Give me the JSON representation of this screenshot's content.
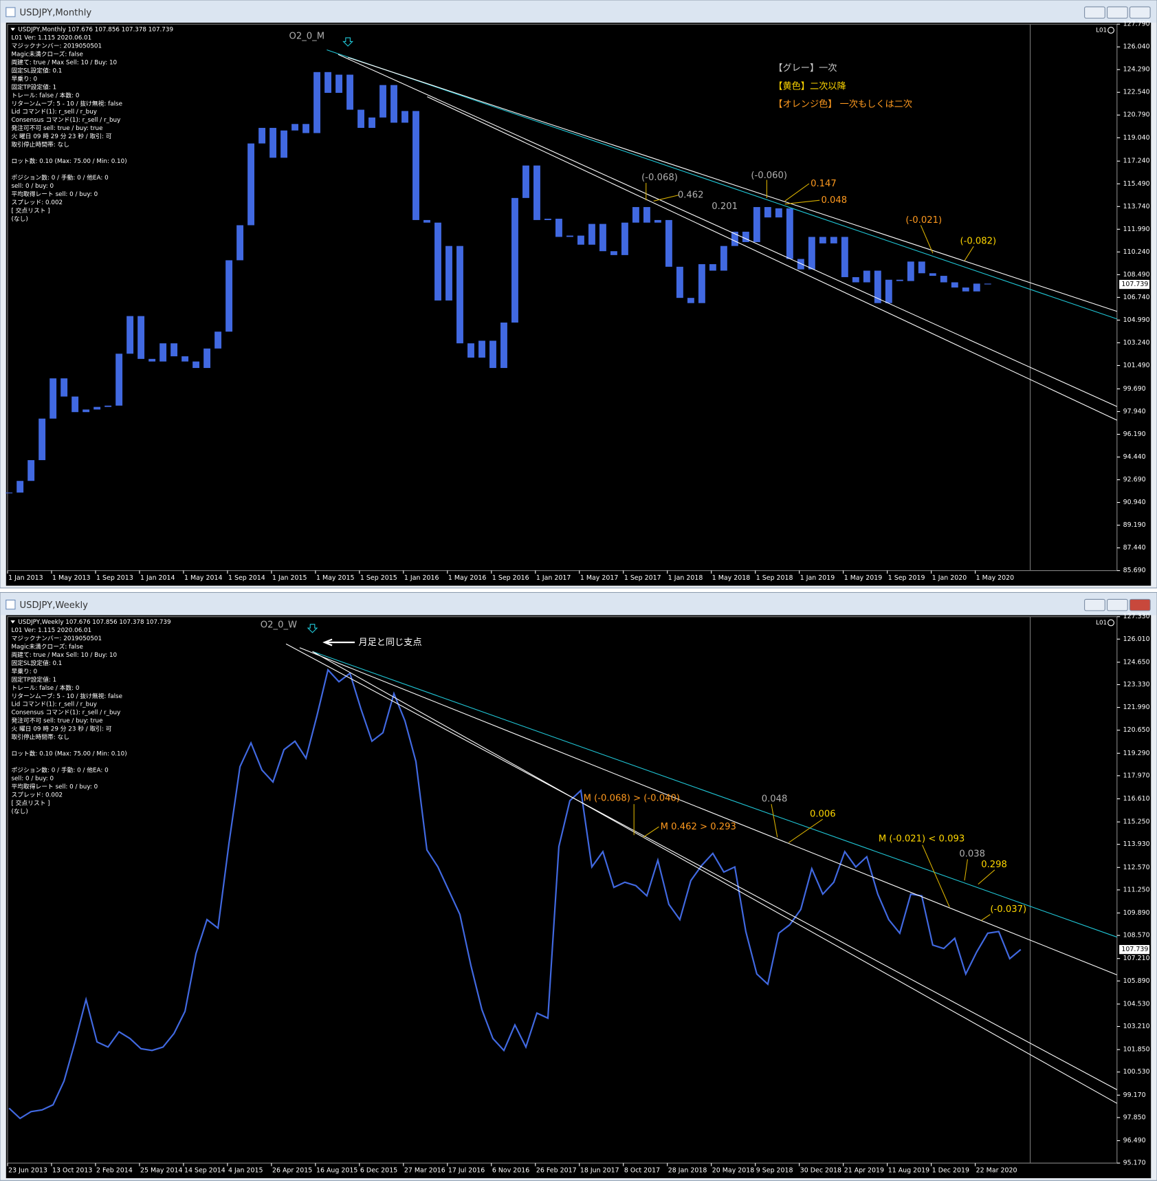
{
  "chart_data": [
    {
      "type": "candlestick",
      "title": "USDJPY,Monthly",
      "header": "USDJPY,Monthly  107.676 107.856 107.378 107.739",
      "indicator_label": "L01",
      "color": "#4169e1",
      "info_lines": [
        "L01 Ver: 1.115 2020.06.01",
        "マジックナンバー: 2019050501",
        "Magic未満クローズ: false",
        "両建て: true / Max Sell: 10 / Buy: 10",
        "固定SL設定値: 0.1",
        "早乗り: 0",
        "固定TP設定値: 1",
        "トレール: false / 本数: 0",
        "リターンムーブ: 5 - 10 / 抜け無視: false",
        "Lid コマンド(1): r_sell / r_buy",
        "Consensus コマンド(1): r_sell / r_buy",
        "発注可不可 sell: true / buy: true",
        "火 曜日 09 時 29 分 23 秒 / 取引: 可",
        "取引停止時間帯: なし",
        "ロット数: 0.10 (Max: 75.00 / Min: 0.10)",
        "ポジション数: 0 / 手動: 0 / 他EA: 0",
        "sell: 0 / buy: 0",
        "平均取得レート sell: 0 / buy: 0",
        "スプレッド: 0.002",
        "[ 交点リスト ]",
        "(なし)"
      ],
      "annotations": [
        {
          "text": "O2_0_M",
          "color": "#b0b0b0"
        },
        {
          "text": "(-0.068)",
          "color": "#b0b0b0"
        },
        {
          "text": "0.462",
          "color": "#b0b0b0"
        },
        {
          "text": "0.201",
          "color": "#b0b0b0"
        },
        {
          "text": "(-0.060)",
          "color": "#b0b0b0"
        },
        {
          "text": "0.147",
          "color": "#ff9a1f"
        },
        {
          "text": "0.048",
          "color": "#ff9a1f"
        },
        {
          "text": "(-0.021)",
          "color": "#ff9a1f"
        },
        {
          "text": "(-0.082)",
          "color": "#ffd700"
        },
        {
          "text": "【グレー】一次",
          "color": "#c8c8c8"
        },
        {
          "text": "【黄色】二次以降",
          "color": "#ffd700"
        },
        {
          "text": "【オレンジ色】 一次もしくは二次",
          "color": "#ff9a1f"
        }
      ],
      "categories": [
        "1 Jan 2013",
        null,
        null,
        null,
        "1 May 2013",
        null,
        null,
        null,
        "1 Sep 2013",
        null,
        null,
        null,
        "1 Jan 2014",
        null,
        null,
        null,
        "1 May 2014",
        null,
        null,
        null,
        "1 Sep 2014",
        null,
        null,
        null,
        "1 Jan 2015",
        null,
        null,
        null,
        "1 May 2015",
        null,
        null,
        null,
        "1 Sep 2015",
        null,
        null,
        null,
        "1 Jan 2016",
        null,
        null,
        null,
        "1 May 2016",
        null,
        null,
        null,
        "1 Sep 2016",
        null,
        null,
        null,
        "1 Jan 2017",
        null,
        null,
        null,
        "1 May 2017",
        null,
        null,
        null,
        "1 Sep 2017",
        null,
        null,
        null,
        "1 Jan 2018",
        null,
        null,
        null,
        "1 May 2018",
        null,
        null,
        null,
        "1 Sep 2018",
        null,
        null,
        null,
        "1 Jan 2019",
        null,
        null,
        null,
        "1 May 2019",
        null,
        null,
        null,
        "1 Sep 2019",
        null,
        null,
        null,
        "1 Jan 2020",
        null,
        null,
        null,
        "1 May 2020",
        null
      ],
      "values": [
        91.7,
        92.6,
        94.2,
        97.4,
        100.5,
        99.1,
        97.9,
        98.1,
        98.3,
        98.4,
        102.4,
        105.3,
        102.0,
        101.8,
        103.2,
        102.2,
        101.8,
        101.3,
        102.8,
        104.1,
        109.6,
        112.3,
        118.6,
        119.8,
        117.5,
        119.6,
        120.1,
        119.4,
        124.1,
        122.5,
        123.9,
        121.2,
        119.8,
        120.6,
        123.1,
        120.2,
        121.1,
        112.7,
        112.5,
        106.5,
        110.7,
        103.2,
        102.1,
        103.4,
        101.3,
        104.8,
        114.4,
        116.9,
        112.7,
        112.8,
        111.4,
        111.5,
        110.8,
        112.4,
        110.3,
        110.0,
        112.5,
        113.7,
        112.5,
        112.7,
        109.1,
        106.7,
        106.3,
        109.3,
        108.8,
        110.7,
        111.8,
        111.0,
        113.7,
        112.9,
        113.6,
        109.7,
        108.9,
        111.4,
        110.9,
        111.4,
        108.3,
        107.9,
        108.8,
        106.3,
        108.1,
        108.0,
        109.5,
        108.6,
        108.4,
        107.9,
        107.5,
        107.2,
        107.8,
        107.739
      ],
      "ylim": [
        85.69,
        127.79
      ],
      "yticks": [
        {
          "value": 127.79,
          "label": "127.790"
        },
        {
          "value": 126.04,
          "label": "126.040"
        },
        {
          "value": 124.29,
          "label": "124.290"
        },
        {
          "value": 122.54,
          "label": "122.540"
        },
        {
          "value": 120.79,
          "label": "120.790"
        },
        {
          "value": 119.04,
          "label": "119.040"
        },
        {
          "value": 117.24,
          "label": "117.240"
        },
        {
          "value": 115.49,
          "label": "115.490"
        },
        {
          "value": 113.74,
          "label": "113.740"
        },
        {
          "value": 111.99,
          "label": "111.990"
        },
        {
          "value": 110.24,
          "label": "110.240"
        },
        {
          "value": 108.49,
          "label": "108.490"
        },
        {
          "value": 106.74,
          "label": "106.740"
        },
        {
          "value": 104.99,
          "label": "104.990"
        },
        {
          "value": 103.24,
          "label": "103.240"
        },
        {
          "value": 101.49,
          "label": "101.490"
        },
        {
          "value": 99.69,
          "label": "99.690"
        },
        {
          "value": 97.94,
          "label": "97.940"
        },
        {
          "value": 96.19,
          "label": "96.190"
        },
        {
          "value": 94.44,
          "label": "94.440"
        },
        {
          "value": 92.69,
          "label": "92.690"
        },
        {
          "value": 90.94,
          "label": "90.940"
        },
        {
          "value": 89.19,
          "label": "89.190"
        },
        {
          "value": 87.44,
          "label": "87.440"
        },
        {
          "value": 85.69,
          "label": "85.690"
        }
      ]
    },
    {
      "type": "line",
      "title": "USDJPY,Weekly",
      "header": "USDJPY,Weekly  107.676 107.856 107.378 107.739",
      "indicator_label": "L01",
      "color": "#4169e1",
      "callout": "月足と同じ支点",
      "info_lines": [
        "L01 Ver: 1.115 2020.06.01",
        "マジックナンバー: 2019050501",
        "Magic未満クローズ: false",
        "両建て: true / Max Sell: 10 / Buy: 10",
        "固定SL設定値: 0.1",
        "早乗り: 0",
        "固定TP設定値: 1",
        "トレール: false / 本数: 0",
        "リターンムーブ: 5 - 10 / 抜け無視: false",
        "Lid コマンド(1): r_sell / r_buy",
        "Consensus コマンド(1): r_sell / r_buy",
        "発注可不可 sell: true / buy: true",
        "火 曜日 09 時 29 分 23 秒 / 取引: 可",
        "取引停止時間帯: なし",
        "ロット数: 0.10 (Max: 75.00 / Min: 0.10)",
        "ポジション数: 0 / 手動: 0 / 他EA: 0",
        "sell: 0 / buy: 0",
        "平均取得レート sell: 0 / buy: 0",
        "スプレッド: 0.002",
        "[ 交点リスト ]",
        "(なし)"
      ],
      "annotations": [
        {
          "text": "O2_0_W",
          "color": "#b0b0b0"
        },
        {
          "text": "M (-0.068) > (-0.040)",
          "color": "#ff9a1f"
        },
        {
          "text": "M 0.462 > 0.293",
          "color": "#ff9a1f"
        },
        {
          "text": "0.048",
          "color": "#b0b0b0"
        },
        {
          "text": "0.006",
          "color": "#ffd700"
        },
        {
          "text": "M (-0.021) < 0.093",
          "color": "#ffd700"
        },
        {
          "text": "0.038",
          "color": "#b0b0b0"
        },
        {
          "text": "0.298",
          "color": "#ffd700"
        },
        {
          "text": "(-0.037)",
          "color": "#ffd700"
        }
      ],
      "categories": [
        "23 Jun 2013",
        null,
        null,
        null,
        "13 Oct 2013",
        null,
        null,
        null,
        "2 Feb 2014",
        null,
        null,
        null,
        "25 May 2014",
        null,
        null,
        null,
        "14 Sep 2014",
        null,
        null,
        null,
        "4 Jan 2015",
        null,
        null,
        null,
        "26 Apr 2015",
        null,
        null,
        null,
        "16 Aug 2015",
        null,
        null,
        null,
        "6 Dec 2015",
        null,
        null,
        null,
        "27 Mar 2016",
        null,
        null,
        null,
        "17 Jul 2016",
        null,
        null,
        null,
        "6 Nov 2016",
        null,
        null,
        null,
        "26 Feb 2017",
        null,
        null,
        null,
        "18 Jun 2017",
        null,
        null,
        null,
        "8 Oct 2017",
        null,
        null,
        null,
        "28 Jan 2018",
        null,
        null,
        null,
        "20 May 2018",
        null,
        null,
        null,
        "9 Sep 2018",
        null,
        null,
        null,
        "30 Dec 2018",
        null,
        null,
        null,
        "21 Apr 2019",
        null,
        null,
        null,
        "11 Aug 2019",
        null,
        null,
        null,
        "1 Dec 2019",
        null,
        null,
        null,
        "22 Mar 2020",
        null,
        null,
        null,
        null
      ],
      "values": [
        98.4,
        97.8,
        98.2,
        98.3,
        98.6,
        100.0,
        102.3,
        104.8,
        102.3,
        102.0,
        102.9,
        102.5,
        101.9,
        101.8,
        102.0,
        102.8,
        104.1,
        107.5,
        109.5,
        109.0,
        114.0,
        118.5,
        119.9,
        118.3,
        117.6,
        119.5,
        120.0,
        119.0,
        121.5,
        124.2,
        123.5,
        124.0,
        121.9,
        120.0,
        120.5,
        122.8,
        121.2,
        118.8,
        113.6,
        112.6,
        111.2,
        109.8,
        106.8,
        104.2,
        102.5,
        101.8,
        103.3,
        102.0,
        104.0,
        103.7,
        113.8,
        116.5,
        117.1,
        112.6,
        113.5,
        111.4,
        111.7,
        111.5,
        110.9,
        113.0,
        110.4,
        109.5,
        111.8,
        112.7,
        113.4,
        112.3,
        112.6,
        108.8,
        106.3,
        105.7,
        108.7,
        109.2,
        110.1,
        112.5,
        111.0,
        111.7,
        113.5,
        112.6,
        113.2,
        111.0,
        109.5,
        108.7,
        111.0,
        110.9,
        108.0,
        107.8,
        108.4,
        106.3,
        107.6,
        108.7,
        108.8,
        107.2,
        107.739
      ],
      "ylim": [
        95.17,
        127.33
      ],
      "yticks": [
        {
          "value": 127.33,
          "label": "127.330"
        },
        {
          "value": 126.01,
          "label": "126.010"
        },
        {
          "value": 124.65,
          "label": "124.650"
        },
        {
          "value": 123.33,
          "label": "123.330"
        },
        {
          "value": 121.99,
          "label": "121.990"
        },
        {
          "value": 120.65,
          "label": "120.650"
        },
        {
          "value": 119.29,
          "label": "119.290"
        },
        {
          "value": 117.97,
          "label": "117.970"
        },
        {
          "value": 116.61,
          "label": "116.610"
        },
        {
          "value": 115.25,
          "label": "115.250"
        },
        {
          "value": 113.93,
          "label": "113.930"
        },
        {
          "value": 112.57,
          "label": "112.570"
        },
        {
          "value": 111.25,
          "label": "111.250"
        },
        {
          "value": 109.89,
          "label": "109.890"
        },
        {
          "value": 108.57,
          "label": "108.570"
        },
        {
          "value": 107.21,
          "label": "107.210"
        },
        {
          "value": 105.89,
          "label": "105.890"
        },
        {
          "value": 104.53,
          "label": "104.530"
        },
        {
          "value": 103.21,
          "label": "103.210"
        },
        {
          "value": 101.85,
          "label": "101.850"
        },
        {
          "value": 100.53,
          "label": "100.530"
        },
        {
          "value": 99.17,
          "label": "99.170"
        },
        {
          "value": 97.85,
          "label": "97.850"
        },
        {
          "value": 96.49,
          "label": "96.490"
        },
        {
          "value": 95.17,
          "label": "95.170"
        }
      ]
    }
  ]
}
